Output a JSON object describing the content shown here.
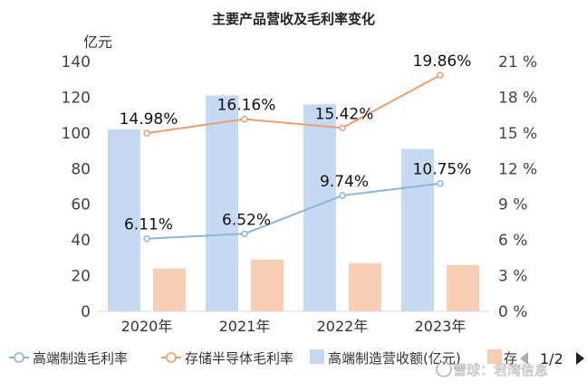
{
  "chart_data": {
    "type": "bar+line",
    "title": "主要产品营收及毛利率变化",
    "y_left_unit": "亿元",
    "y_left_range": [
      0,
      140
    ],
    "y_left_ticks": [
      "0",
      "20",
      "40",
      "60",
      "80",
      "100",
      "120",
      "140"
    ],
    "y_right_range": [
      0,
      21
    ],
    "y_right_ticks": [
      "0 %",
      "3 %",
      "6 %",
      "9 %",
      "12 %",
      "15 %",
      "18 %",
      "21 %"
    ],
    "categories": [
      "2020年",
      "2021年",
      "2022年",
      "2023年"
    ],
    "bar_series": [
      {
        "name": "高端制造营收额(亿元)",
        "color": "#c5d9f0",
        "values": [
          102,
          121,
          116,
          91
        ]
      },
      {
        "name": "存",
        "color": "#f8cfb5",
        "values": [
          24,
          29,
          27,
          26
        ]
      }
    ],
    "line_series": [
      {
        "name": "高端制造毛利率",
        "color": "#8cb4dc",
        "values": [
          6.11,
          6.52,
          9.74,
          10.75
        ],
        "labels": [
          "6.11%",
          "6.52%",
          "9.74%",
          "10.75%"
        ]
      },
      {
        "name": "存储半导体毛利率",
        "color": "#ef9e6f",
        "values": [
          14.98,
          16.16,
          15.42,
          19.86
        ],
        "labels": [
          "14.98%",
          "16.16%",
          "15.42%",
          "19.86%"
        ]
      }
    ],
    "legend_position": "bottom",
    "grid": false
  },
  "pager": {
    "label": "1/2",
    "prev_icon": "triangle-left-icon",
    "next_icon": "triangle-right-icon"
  },
  "watermark": "雪球：君湾信息"
}
